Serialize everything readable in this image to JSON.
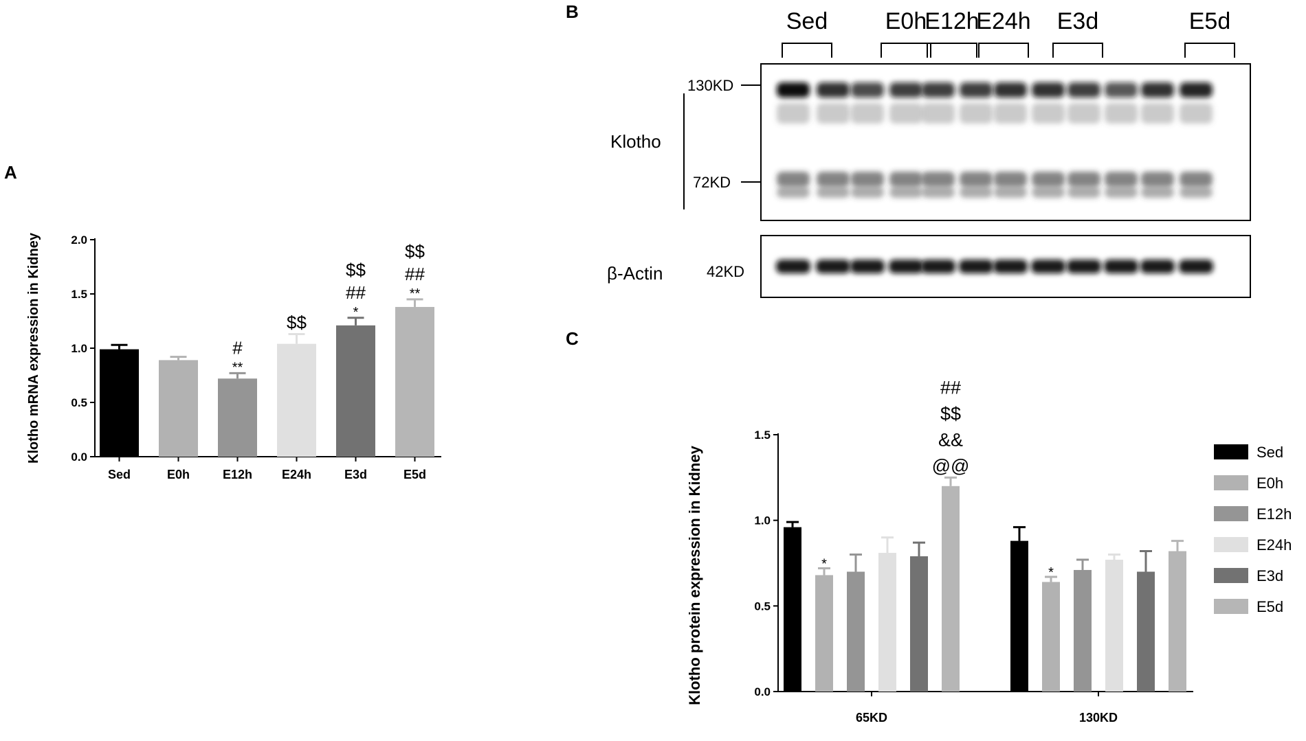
{
  "panels": {
    "a": "A",
    "b": "B",
    "c": "C"
  },
  "chart_data": [
    {
      "type": "bar",
      "panel": "A",
      "title": "",
      "ylabel": "Klotho mRNA expression in Kidney",
      "xlabel": "",
      "ylim": [
        0,
        2.0
      ],
      "yticks": [
        "0.0",
        "0.5",
        "1.0",
        "1.5",
        "2.0"
      ],
      "categories": [
        "Sed",
        "E0h",
        "E12h",
        "E24h",
        "E3d",
        "E5d"
      ],
      "values": [
        0.99,
        0.89,
        0.72,
        1.04,
        1.21,
        1.38
      ],
      "errors": [
        0.04,
        0.03,
        0.05,
        0.09,
        0.07,
        0.07
      ],
      "annotations": [
        [],
        [],
        [
          "**",
          "#"
        ],
        [
          "$$"
        ],
        [
          "*",
          "##",
          "$$"
        ],
        [
          "**",
          "##",
          "$$"
        ]
      ],
      "colors": [
        "#000000",
        "#b2b2b2",
        "#959595",
        "#e0e0e0",
        "#727272",
        "#b6b6b6"
      ]
    },
    {
      "type": "bar",
      "panel": "C",
      "title": "",
      "ylabel": "Klotho protein expression in Kidney",
      "xlabel": "",
      "ylim": [
        0,
        1.5
      ],
      "yticks": [
        "0.0",
        "0.5",
        "1.0",
        "1.5"
      ],
      "categories": [
        "65KD",
        "130KD"
      ],
      "legend_position": "right",
      "series": [
        {
          "name": "Sed",
          "values": [
            0.96,
            0.88
          ],
          "errors": [
            0.03,
            0.08
          ],
          "annotations": [
            [],
            []
          ]
        },
        {
          "name": "E0h",
          "values": [
            0.68,
            0.64
          ],
          "errors": [
            0.04,
            0.03
          ],
          "annotations": [
            [
              "*"
            ],
            [
              "*"
            ]
          ]
        },
        {
          "name": "E12h",
          "values": [
            0.7,
            0.71
          ],
          "errors": [
            0.1,
            0.06
          ],
          "annotations": [
            [],
            []
          ]
        },
        {
          "name": "E24h",
          "values": [
            0.81,
            0.77
          ],
          "errors": [
            0.09,
            0.03
          ],
          "annotations": [
            [],
            []
          ]
        },
        {
          "name": "E3d",
          "values": [
            0.79,
            0.7
          ],
          "errors": [
            0.08,
            0.12
          ],
          "annotations": [
            [],
            []
          ]
        },
        {
          "name": "E5d",
          "values": [
            1.2,
            0.82
          ],
          "errors": [
            0.05,
            0.06
          ],
          "annotations": [
            [
              "@@",
              "&&",
              "$$",
              "##"
            ],
            []
          ]
        }
      ],
      "colors": [
        "#000000",
        "#b2b2b2",
        "#959595",
        "#e0e0e0",
        "#727272",
        "#b6b6b6"
      ]
    }
  ],
  "blot": {
    "groups": [
      "Sed",
      "E0h",
      "E12h",
      "E24h",
      "E3d",
      "E5d"
    ],
    "klotho_label": "Klotho",
    "actin_label": "β-Actin",
    "mw_130": "130KD",
    "mw_72": "72KD",
    "mw_42": "42KD",
    "lanes": 12
  }
}
